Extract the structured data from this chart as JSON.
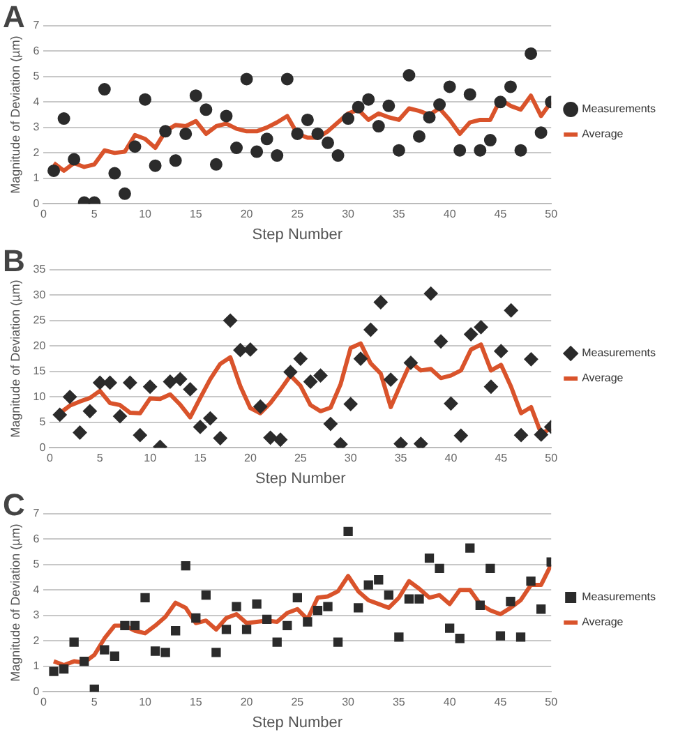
{
  "chart_data": [
    {
      "type": "scatter",
      "title": "A",
      "xlabel": "Step Number",
      "ylabel": "Magnitude of Deviation (µm)",
      "x": [
        1,
        2,
        3,
        4,
        5,
        6,
        7,
        8,
        9,
        10,
        11,
        12,
        13,
        14,
        15,
        16,
        17,
        18,
        19,
        20,
        21,
        22,
        23,
        24,
        25,
        26,
        27,
        28,
        29,
        30,
        31,
        32,
        33,
        34,
        35,
        36,
        37,
        38,
        39,
        40,
        41,
        42,
        43,
        44,
        45,
        46,
        47,
        48,
        49,
        50
      ],
      "xlim": [
        0,
        50
      ],
      "xticks": [
        0,
        5,
        10,
        15,
        20,
        25,
        30,
        35,
        40,
        45,
        50
      ],
      "ylim": [
        0,
        7
      ],
      "yticks": [
        0,
        1,
        2,
        3,
        4,
        5,
        6,
        7
      ],
      "grid": "y",
      "legend": "right",
      "series": [
        {
          "name": "Measurements",
          "marker": "circle",
          "color": "#2b2b2b",
          "values": [
            1.3,
            3.35,
            1.75,
            0.05,
            0.05,
            4.5,
            1.2,
            0.4,
            2.25,
            4.1,
            1.5,
            2.85,
            1.7,
            2.75,
            4.25,
            3.7,
            1.55,
            3.45,
            2.2,
            4.9,
            2.05,
            2.55,
            1.9,
            4.9,
            2.75,
            3.3,
            2.75,
            2.4,
            1.9,
            3.35,
            3.8,
            4.1,
            3.05,
            3.85,
            2.1,
            5.05,
            2.65,
            3.4,
            3.9,
            4.6,
            2.1,
            4.3,
            2.1,
            2.5,
            4.0,
            4.6,
            2.1,
            5.9,
            2.8,
            4.0
          ]
        },
        {
          "name": "Average",
          "type": "line",
          "color": "#d9532b",
          "values": [
            1.6,
            1.3,
            1.6,
            1.45,
            1.55,
            2.1,
            2.0,
            2.05,
            2.7,
            2.55,
            2.2,
            2.85,
            3.1,
            3.05,
            3.25,
            2.75,
            3.05,
            3.15,
            2.95,
            2.85,
            2.85,
            3.0,
            3.2,
            3.45,
            2.75,
            2.6,
            2.6,
            2.85,
            3.2,
            3.55,
            3.7,
            3.3,
            3.55,
            3.4,
            3.3,
            3.75,
            3.65,
            3.5,
            3.75,
            3.3,
            2.75,
            3.2,
            3.3,
            3.3,
            4.1,
            3.85,
            3.7,
            4.25,
            3.45,
            4.0
          ]
        }
      ]
    },
    {
      "type": "scatter",
      "title": "B",
      "xlabel": "Step Number",
      "ylabel": "Magnitude of Deviation (µm)",
      "x": [
        1,
        2,
        3,
        4,
        5,
        6,
        7,
        8,
        9,
        10,
        11,
        12,
        13,
        14,
        15,
        16,
        17,
        18,
        19,
        20,
        21,
        22,
        23,
        24,
        25,
        26,
        27,
        28,
        29,
        30,
        31,
        32,
        33,
        34,
        35,
        36,
        37,
        38,
        39,
        40,
        41,
        42,
        43,
        44,
        45,
        46,
        47,
        48,
        49,
        50
      ],
      "xlim": [
        0,
        50
      ],
      "xticks": [
        0,
        5,
        10,
        15,
        20,
        25,
        30,
        35,
        40,
        45,
        50
      ],
      "ylim": [
        0,
        35
      ],
      "yticks": [
        0,
        5,
        10,
        15,
        20,
        25,
        30,
        35
      ],
      "grid": "y",
      "legend": "right",
      "series": [
        {
          "name": "Measurements",
          "marker": "diamond",
          "color": "#2b2b2b",
          "values": [
            6.5,
            10,
            3,
            7.2,
            12.8,
            12.8,
            6.2,
            12.8,
            2.5,
            12,
            0.2,
            13,
            13.5,
            11.5,
            4.1,
            5.8,
            1.9,
            25,
            19.2,
            19.3,
            8.1,
            2,
            1.6,
            14.9,
            17.5,
            13,
            14.2,
            4.7,
            0.7,
            8.6,
            17.5,
            23.2,
            28.6,
            13.4,
            0.8,
            16.7,
            0.8,
            30.3,
            20.9,
            8.7,
            2.4,
            22.3,
            23.7,
            12,
            19,
            27,
            2.5,
            17.4,
            2.6,
            4.1
          ]
        },
        {
          "name": "Average",
          "type": "line",
          "color": "#d9532b",
          "values": [
            6.8,
            8.3,
            9.1,
            9.8,
            11.2,
            8.8,
            8.4,
            6.9,
            6.8,
            9.7,
            9.6,
            10.5,
            8.5,
            6,
            9.8,
            13.5,
            16.5,
            17.8,
            12.1,
            7.8,
            6.8,
            8.8,
            11.4,
            14.2,
            12.2,
            8.4,
            7.2,
            7.9,
            12.5,
            19.6,
            20.5,
            16.6,
            14.6,
            8,
            12.5,
            16.8,
            15.2,
            15.5,
            13.7,
            14.2,
            15.2,
            19.3,
            20.3,
            15.2,
            16.3,
            12,
            6.8,
            8,
            2.8,
            3.8
          ]
        }
      ]
    },
    {
      "type": "scatter",
      "title": "C",
      "xlabel": "Step Number",
      "ylabel": "Magnitude of Deviation (µm)",
      "x": [
        1,
        2,
        3,
        4,
        5,
        6,
        7,
        8,
        9,
        10,
        11,
        12,
        13,
        14,
        15,
        16,
        17,
        18,
        19,
        20,
        21,
        22,
        23,
        24,
        25,
        26,
        27,
        28,
        29,
        30,
        31,
        32,
        33,
        34,
        35,
        36,
        37,
        38,
        39,
        40,
        41,
        42,
        43,
        44,
        45,
        46,
        47,
        48,
        49,
        50
      ],
      "xlim": [
        0,
        50
      ],
      "xticks": [
        0,
        5,
        10,
        15,
        20,
        25,
        30,
        35,
        40,
        45,
        50
      ],
      "ylim": [
        0,
        7
      ],
      "yticks": [
        0,
        1,
        2,
        3,
        4,
        5,
        6,
        7
      ],
      "grid": "y",
      "legend": "right",
      "series": [
        {
          "name": "Measurements",
          "marker": "square",
          "color": "#2b2b2b",
          "values": [
            0.8,
            0.9,
            1.95,
            1.2,
            0.1,
            1.65,
            1.4,
            2.6,
            2.6,
            3.7,
            1.6,
            1.55,
            2.4,
            4.95,
            2.9,
            3.8,
            1.55,
            2.45,
            3.35,
            2.45,
            3.45,
            2.85,
            1.95,
            2.6,
            3.7,
            2.75,
            3.2,
            3.35,
            1.95,
            6.3,
            3.3,
            4.2,
            4.4,
            3.8,
            2.15,
            3.65,
            3.65,
            5.25,
            4.85,
            2.5,
            2.1,
            5.65,
            3.4,
            4.85,
            2.2,
            3.55,
            2.15,
            4.35,
            3.25,
            5.1
          ]
        },
        {
          "name": "Average",
          "type": "line",
          "color": "#d9532b",
          "values": [
            1.2,
            1.05,
            1.2,
            1.15,
            1.45,
            2.1,
            2.6,
            2.6,
            2.4,
            2.3,
            2.6,
            2.95,
            3.5,
            3.3,
            2.7,
            2.8,
            2.45,
            2.9,
            3.05,
            2.7,
            2.75,
            2.8,
            2.75,
            3.1,
            3.25,
            2.85,
            3.7,
            3.75,
            3.95,
            4.55,
            3.95,
            3.6,
            3.45,
            3.3,
            3.7,
            4.35,
            4.05,
            3.7,
            3.8,
            3.45,
            4.0,
            4.0,
            3.45,
            3.2,
            3.05,
            3.3,
            3.6,
            4.2,
            4.2,
            5.0
          ]
        }
      ]
    }
  ]
}
